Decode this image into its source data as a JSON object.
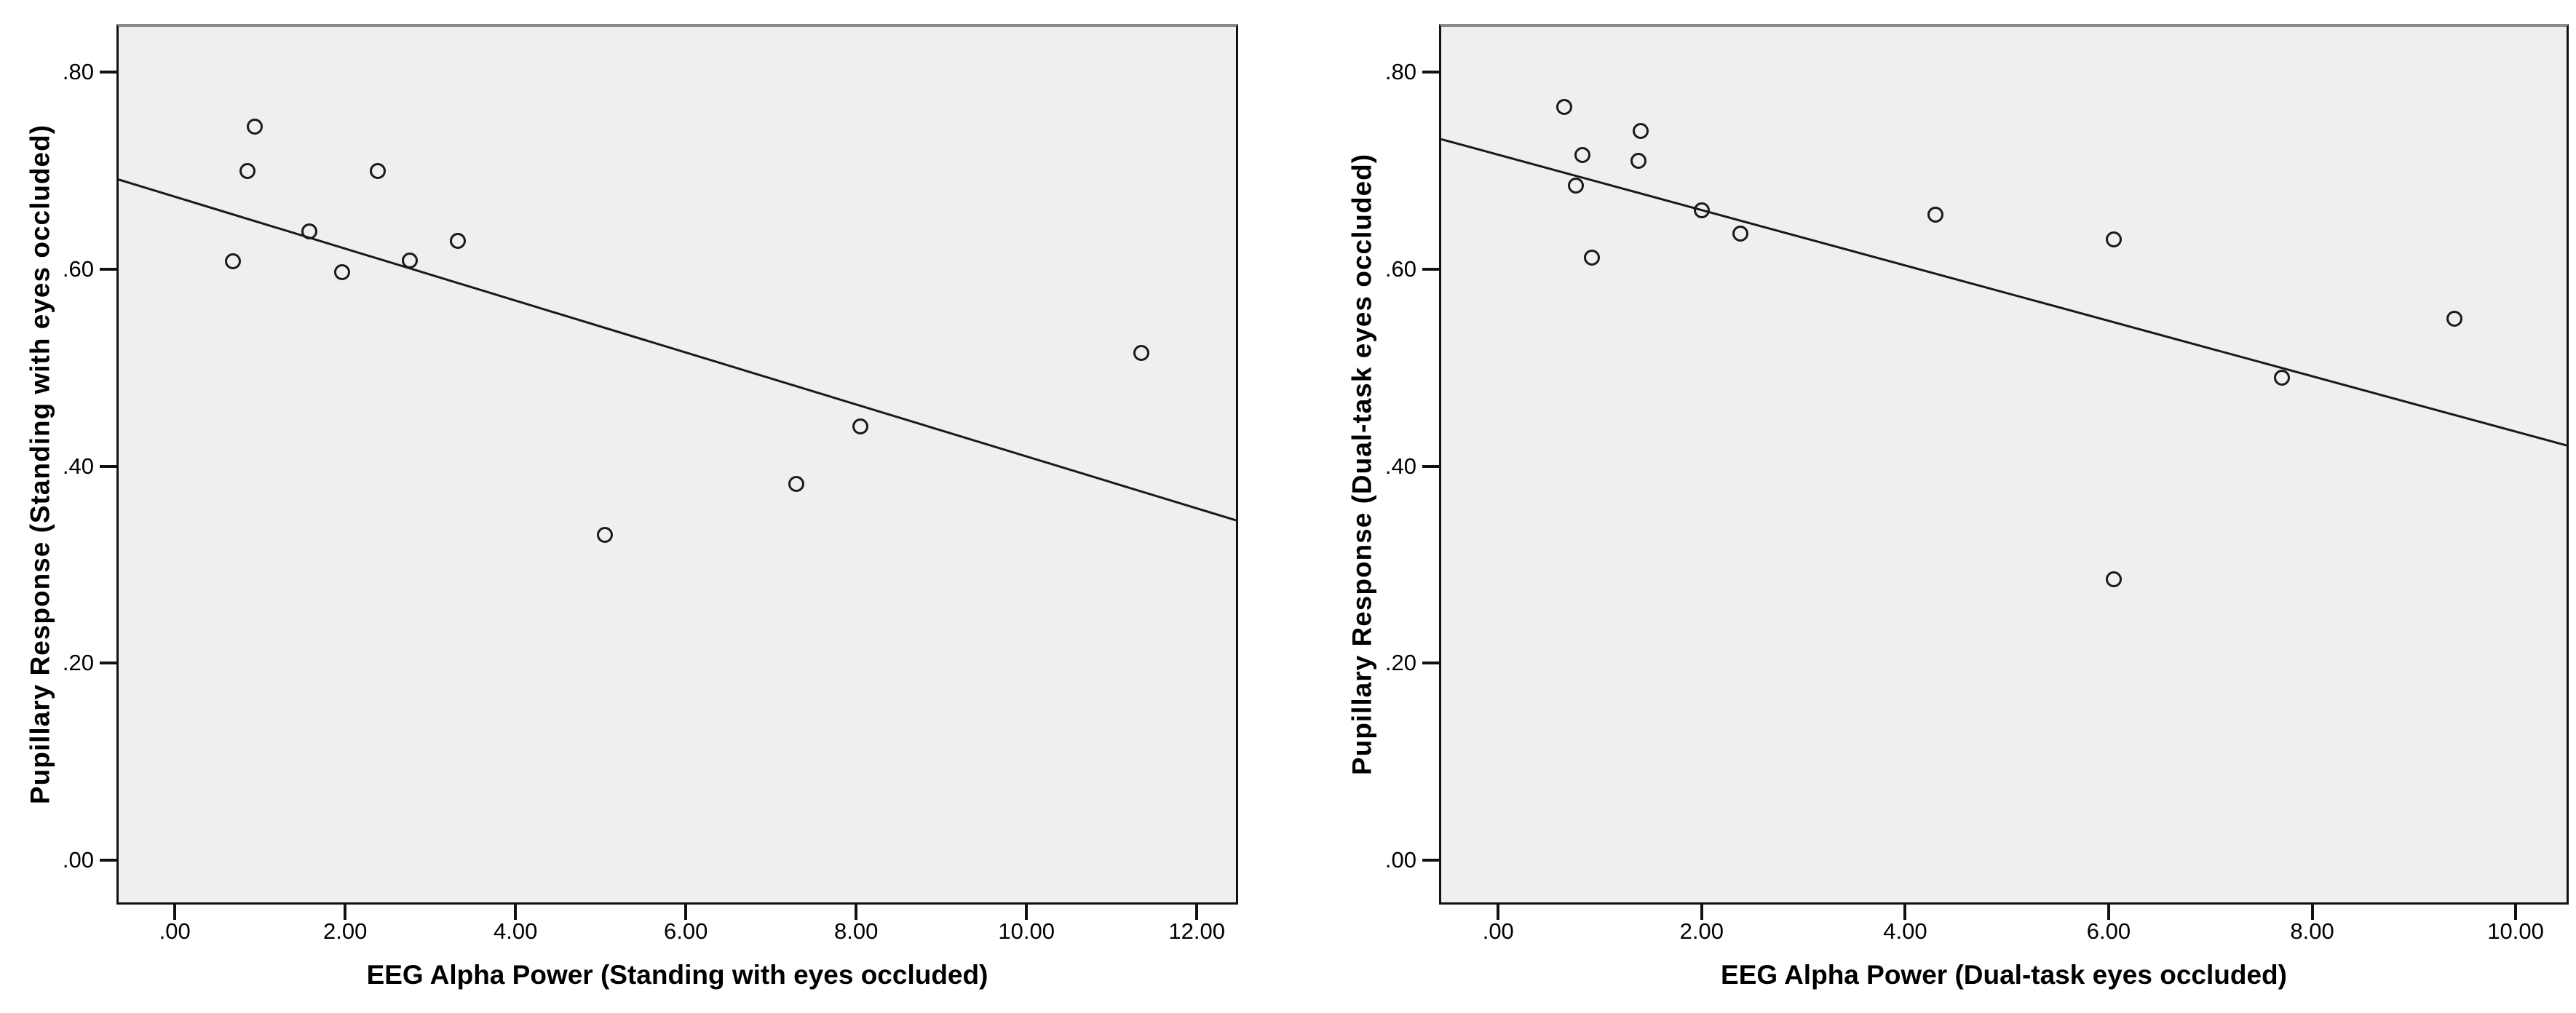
{
  "page": {
    "background": "#ffffff",
    "description_colors": {
      "plot_bg": "#efefef",
      "frame": "#111111",
      "frame_top": "#8a8a8a",
      "marker": "#1a1a1a",
      "line": "#1a1a1a",
      "text": "#000000"
    }
  },
  "chart_data": [
    {
      "type": "scatter",
      "title": "",
      "xlabel": "EEG Alpha Power (Standing with eyes occluded)",
      "ylabel": "Pupillary Response (Standing with eyes occluded)",
      "legend": "none",
      "grid": "off",
      "x_tick_values": [
        0,
        2,
        4,
        6,
        8,
        10,
        12
      ],
      "x_tick_labels": [
        ".00",
        "2.00",
        "4.00",
        "6.00",
        "8.00",
        "10.00",
        "12.00"
      ],
      "y_tick_values": [
        0,
        0.2,
        0.4,
        0.6,
        0.8
      ],
      "y_tick_labels": [
        ".00",
        ".20",
        ".40",
        ".60",
        ".80"
      ],
      "xlim": [
        -0.66,
        12.46
      ],
      "ylim": [
        -0.043,
        0.846
      ],
      "points": [
        [
          0.94,
          0.745
        ],
        [
          0.85,
          0.7
        ],
        [
          2.38,
          0.7
        ],
        [
          1.58,
          0.638
        ],
        [
          0.68,
          0.608
        ],
        [
          1.96,
          0.597
        ],
        [
          2.76,
          0.609
        ],
        [
          3.32,
          0.629
        ],
        [
          5.05,
          0.33
        ],
        [
          7.3,
          0.382
        ],
        [
          8.05,
          0.44
        ],
        [
          11.35,
          0.515
        ]
      ],
      "fit_line": {
        "x1": -0.66,
        "y1": 0.691,
        "x2": 12.46,
        "y2": 0.345
      }
    },
    {
      "type": "scatter",
      "title": "",
      "xlabel": "EEG Alpha Power (Dual-task eyes occluded)",
      "ylabel": "Pupillary Response (Dual-task eyes occluded)",
      "legend": "none",
      "grid": "off",
      "x_tick_values": [
        0,
        2,
        4,
        6,
        8,
        10
      ],
      "x_tick_labels": [
        ".00",
        "2.00",
        "4.00",
        "6.00",
        "8.00",
        "10.00"
      ],
      "y_tick_values": [
        0,
        0.2,
        0.4,
        0.6,
        0.8
      ],
      "y_tick_labels": [
        ".00",
        ".20",
        ".40",
        ".60",
        ".80"
      ],
      "xlim": [
        -0.56,
        10.5
      ],
      "ylim": [
        -0.043,
        0.846
      ],
      "points": [
        [
          0.65,
          0.765
        ],
        [
          0.83,
          0.716
        ],
        [
          0.76,
          0.685
        ],
        [
          1.4,
          0.74
        ],
        [
          1.38,
          0.71
        ],
        [
          0.92,
          0.612
        ],
        [
          2.0,
          0.66
        ],
        [
          2.38,
          0.636
        ],
        [
          4.3,
          0.655
        ],
        [
          6.05,
          0.63
        ],
        [
          6.05,
          0.285
        ],
        [
          7.7,
          0.49
        ],
        [
          9.4,
          0.55
        ]
      ],
      "fit_line": {
        "x1": -0.56,
        "y1": 0.732,
        "x2": 10.5,
        "y2": 0.421
      }
    }
  ]
}
